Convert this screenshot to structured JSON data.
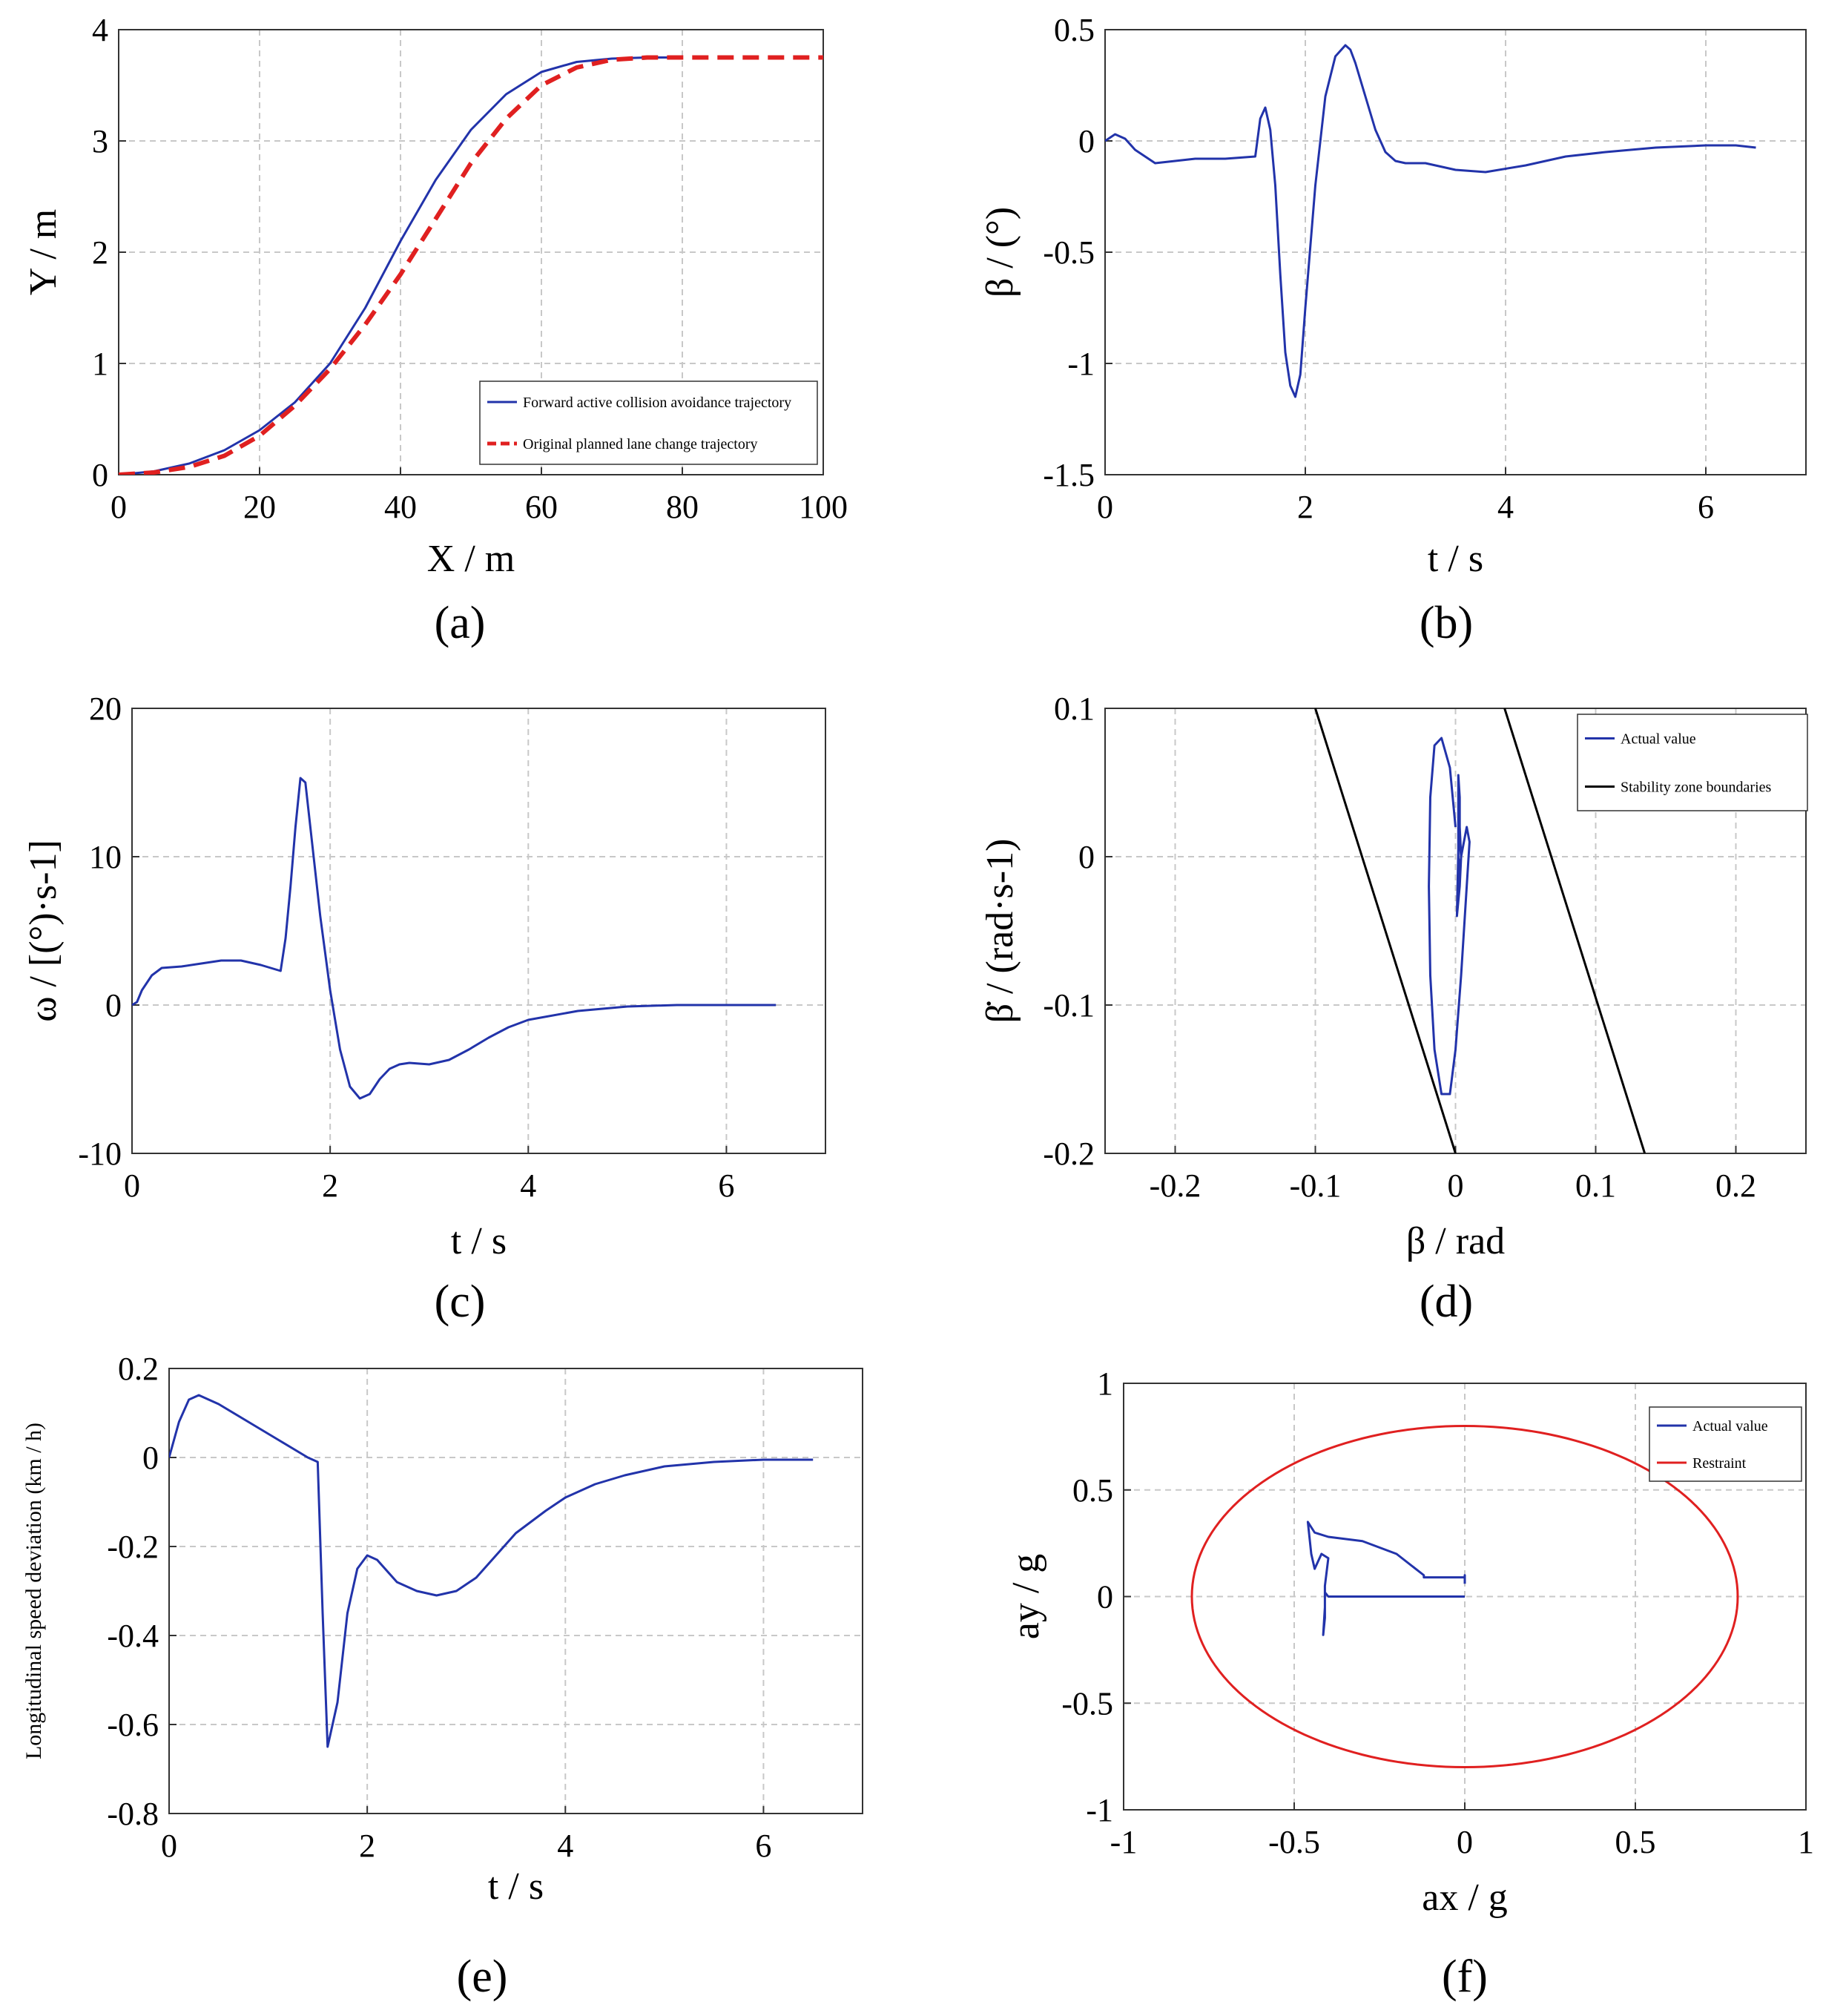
{
  "chart_data": [
    {
      "id": "a",
      "type": "line",
      "panel_label": "(a)",
      "xlabel": "X / m",
      "ylabel": "Y / m",
      "xlim": [
        0,
        100
      ],
      "ylim": [
        0,
        4
      ],
      "xticks": [
        0,
        20,
        40,
        60,
        80,
        100
      ],
      "yticks": [
        0,
        1,
        2,
        3,
        4
      ],
      "grid": true,
      "legend": {
        "position": "bottom-right",
        "entries": [
          "Forward active collision avoidance trajectory",
          "Original planned lane change trajectory"
        ]
      },
      "series": [
        {
          "name": "Forward active collision avoidance trajectory",
          "color": "#2233aa",
          "dash": "solid",
          "x": [
            0,
            5,
            10,
            15,
            20,
            25,
            30,
            35,
            40,
            45,
            50,
            55,
            60,
            65,
            70,
            75,
            80
          ],
          "y": [
            0,
            0.03,
            0.1,
            0.22,
            0.4,
            0.65,
            1.0,
            1.5,
            2.1,
            2.65,
            3.1,
            3.42,
            3.62,
            3.71,
            3.74,
            3.75,
            3.75
          ]
        },
        {
          "name": "Original planned lane change trajectory",
          "color": "#e02020",
          "dash": "dashed",
          "x": [
            0,
            5,
            10,
            15,
            20,
            25,
            30,
            35,
            40,
            45,
            50,
            55,
            60,
            65,
            70,
            75,
            80,
            90,
            100
          ],
          "y": [
            0,
            0.02,
            0.07,
            0.17,
            0.35,
            0.62,
            0.95,
            1.35,
            1.8,
            2.3,
            2.8,
            3.2,
            3.5,
            3.66,
            3.73,
            3.75,
            3.75,
            3.75,
            3.75
          ]
        }
      ]
    },
    {
      "id": "b",
      "type": "line",
      "panel_label": "(b)",
      "xlabel": "t / s",
      "ylabel": "β / (°)",
      "xlim": [
        0,
        7
      ],
      "ylim": [
        -1.5,
        0.5
      ],
      "xticks": [
        0,
        2,
        4,
        6
      ],
      "yticks": [
        -1.5,
        -1,
        -0.5,
        0,
        0.5
      ],
      "grid": true,
      "series": [
        {
          "name": "β",
          "color": "#2233aa",
          "x": [
            0,
            0.1,
            0.2,
            0.3,
            0.5,
            0.7,
            0.9,
            1.2,
            1.5,
            1.55,
            1.6,
            1.65,
            1.7,
            1.75,
            1.8,
            1.85,
            1.9,
            1.95,
            2.0,
            2.1,
            2.2,
            2.3,
            2.4,
            2.45,
            2.5,
            2.6,
            2.7,
            2.8,
            2.9,
            3.0,
            3.2,
            3.5,
            3.8,
            4.2,
            4.6,
            5.0,
            5.5,
            6.0,
            6.3,
            6.5
          ],
          "y": [
            0,
            0.03,
            0.01,
            -0.04,
            -0.1,
            -0.09,
            -0.08,
            -0.08,
            -0.07,
            0.1,
            0.15,
            0.05,
            -0.2,
            -0.6,
            -0.95,
            -1.1,
            -1.15,
            -1.05,
            -0.75,
            -0.2,
            0.2,
            0.38,
            0.43,
            0.41,
            0.35,
            0.2,
            0.05,
            -0.05,
            -0.09,
            -0.1,
            -0.1,
            -0.13,
            -0.14,
            -0.11,
            -0.07,
            -0.05,
            -0.03,
            -0.02,
            -0.02,
            -0.03
          ]
        }
      ]
    },
    {
      "id": "c",
      "type": "line",
      "panel_label": "(c)",
      "xlabel": "t / s",
      "ylabel": "ω / [(°)·s-1]",
      "xlim": [
        0,
        7
      ],
      "ylim": [
        -10,
        20
      ],
      "xticks": [
        0,
        2,
        4,
        6
      ],
      "yticks": [
        -10,
        0,
        10,
        20
      ],
      "grid": true,
      "series": [
        {
          "name": "ω",
          "color": "#2233aa",
          "x": [
            0,
            0.05,
            0.1,
            0.2,
            0.3,
            0.5,
            0.7,
            0.9,
            1.1,
            1.3,
            1.5,
            1.55,
            1.6,
            1.65,
            1.7,
            1.75,
            1.8,
            1.9,
            2.0,
            2.1,
            2.2,
            2.3,
            2.4,
            2.5,
            2.6,
            2.7,
            2.8,
            3.0,
            3.2,
            3.4,
            3.6,
            3.8,
            4.0,
            4.5,
            5.0,
            5.5,
            6.0,
            6.5
          ],
          "y": [
            0,
            0.2,
            1.0,
            2.0,
            2.5,
            2.6,
            2.8,
            3.0,
            3.0,
            2.7,
            2.3,
            4.5,
            8.0,
            12.0,
            15.3,
            15.0,
            12.0,
            6.0,
            1.0,
            -3.0,
            -5.5,
            -6.3,
            -6.0,
            -5.0,
            -4.3,
            -4.0,
            -3.9,
            -4.0,
            -3.7,
            -3.0,
            -2.2,
            -1.5,
            -1.0,
            -0.4,
            -0.1,
            0,
            0,
            0
          ]
        }
      ]
    },
    {
      "id": "d",
      "type": "line",
      "panel_label": "(d)",
      "xlabel": "β / rad",
      "ylabel": "β̇ / (rad·s-1)",
      "xlim": [
        -0.25,
        0.25
      ],
      "ylim": [
        -0.2,
        0.1
      ],
      "xticks": [
        -0.2,
        -0.1,
        0,
        0.1,
        0.2
      ],
      "yticks": [
        -0.2,
        -0.1,
        0,
        0.1
      ],
      "grid": true,
      "legend": {
        "position": "top-right",
        "entries": [
          "Actual value",
          "Stability zone boundaries"
        ]
      },
      "series": [
        {
          "name": "Actual value",
          "color": "#2233aa",
          "x": [
            0,
            -0.004,
            -0.01,
            -0.015,
            -0.018,
            -0.019,
            -0.018,
            -0.015,
            -0.01,
            -0.004,
            0.0,
            0.004,
            0.008,
            0.01,
            0.008,
            0.004,
            0.002,
            0.002,
            0.003,
            0.003,
            0.004,
            0.003,
            0.001,
            0.002,
            0.003,
            0.004,
            0.003,
            0.002
          ],
          "y": [
            0.02,
            0.06,
            0.08,
            0.075,
            0.04,
            -0.02,
            -0.08,
            -0.13,
            -0.16,
            -0.16,
            -0.13,
            -0.08,
            -0.02,
            0.01,
            0.02,
            0.0,
            -0.03,
            0.055,
            0.04,
            0.02,
            0.0,
            -0.02,
            -0.04,
            0.005,
            0.01,
            0.0,
            -0.01,
            0.0
          ]
        },
        {
          "name": "Stability zone boundaries",
          "color": "#000000",
          "x": [
            -0.1,
            0.0
          ],
          "y": [
            0.1,
            -0.2
          ]
        },
        {
          "name": "Stability zone boundaries",
          "color": "#000000",
          "x": [
            0.035,
            0.135
          ],
          "y": [
            0.1,
            -0.2
          ]
        }
      ]
    },
    {
      "id": "e",
      "type": "line",
      "panel_label": "(e)",
      "xlabel": "t / s",
      "ylabel": "Longitudinal speed deviation (km / h)",
      "xlim": [
        0,
        7
      ],
      "ylim": [
        -0.8,
        0.2
      ],
      "xticks": [
        0,
        2,
        4,
        6
      ],
      "yticks": [
        -0.8,
        -0.6,
        -0.4,
        -0.2,
        0,
        0.2
      ],
      "grid": true,
      "series": [
        {
          "name": "deviation",
          "color": "#2233aa",
          "x": [
            0,
            0.1,
            0.2,
            0.3,
            0.5,
            0.8,
            1.1,
            1.4,
            1.5,
            1.55,
            1.6,
            1.7,
            1.8,
            1.9,
            2.0,
            2.1,
            2.3,
            2.5,
            2.7,
            2.9,
            3.1,
            3.3,
            3.5,
            3.8,
            4.0,
            4.3,
            4.6,
            5.0,
            5.5,
            6.0,
            6.5
          ],
          "y": [
            0,
            0.08,
            0.13,
            0.14,
            0.12,
            0.08,
            0.04,
            0.0,
            -0.01,
            -0.35,
            -0.65,
            -0.55,
            -0.35,
            -0.25,
            -0.22,
            -0.23,
            -0.28,
            -0.3,
            -0.31,
            -0.3,
            -0.27,
            -0.22,
            -0.17,
            -0.12,
            -0.09,
            -0.06,
            -0.04,
            -0.02,
            -0.01,
            -0.005,
            -0.005
          ]
        }
      ]
    },
    {
      "id": "f",
      "type": "line",
      "panel_label": "(f)",
      "xlabel": "ax / g",
      "ylabel": "ay / g",
      "xlim": [
        -1,
        1
      ],
      "ylim": [
        -1,
        1
      ],
      "xticks": [
        -1,
        -0.5,
        0,
        0.5,
        1
      ],
      "yticks": [
        -1,
        -0.5,
        0,
        0.5,
        1
      ],
      "grid": true,
      "legend": {
        "position": "top-right",
        "entries": [
          "Actual value",
          "Restraint"
        ]
      },
      "restraint_radius": 0.8,
      "series": [
        {
          "name": "Actual value",
          "color": "#2233aa",
          "x": [
            0,
            -0.4,
            -0.41,
            -0.41,
            -0.415,
            -0.41,
            -0.41,
            -0.4,
            -0.42,
            -0.44,
            -0.45,
            -0.46,
            -0.44,
            -0.4,
            -0.3,
            -0.2,
            -0.12,
            -0.12,
            0,
            0.0,
            0.0
          ],
          "y": [
            0,
            0,
            0.02,
            -0.1,
            -0.18,
            -0.05,
            0.05,
            0.18,
            0.2,
            0.13,
            0.2,
            0.35,
            0.3,
            0.28,
            0.26,
            0.2,
            0.1,
            0.09,
            0.09,
            0.1,
            0.06
          ]
        }
      ]
    }
  ]
}
